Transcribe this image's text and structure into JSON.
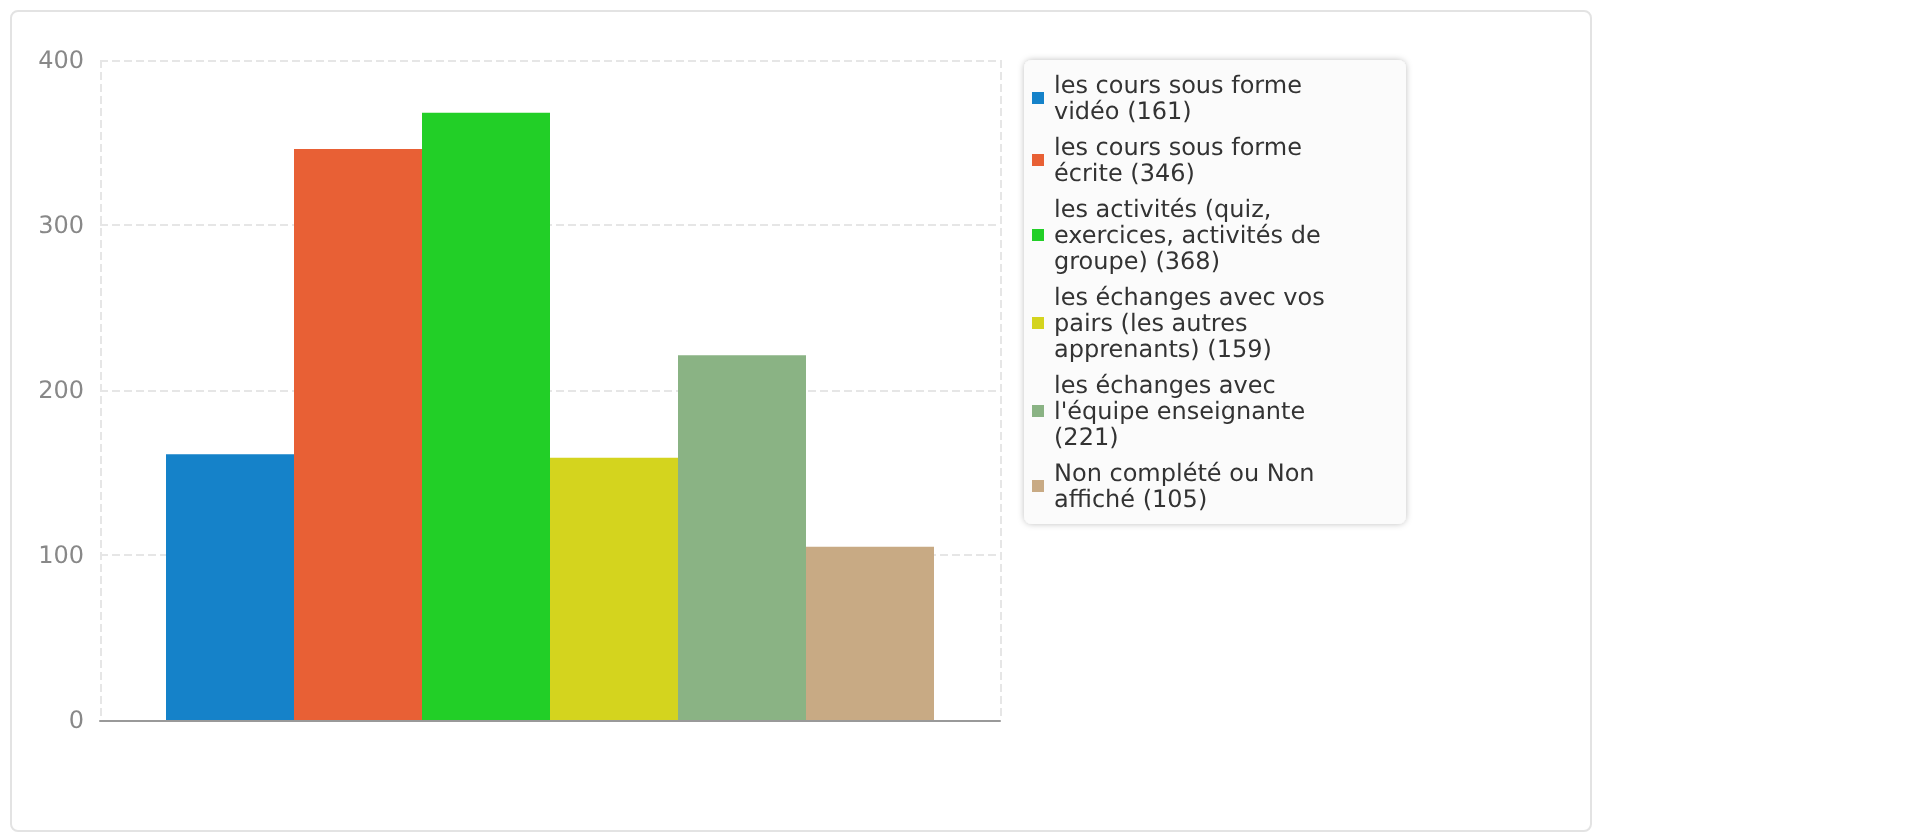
{
  "chart_data": {
    "type": "bar",
    "categories": [
      null
    ],
    "series": [
      {
        "name": "les cours sous forme vidéo (161)",
        "color": "#1582c9",
        "values": [
          161
        ]
      },
      {
        "name": "les cours sous forme écrite (346)",
        "color": "#e86035",
        "values": [
          346
        ]
      },
      {
        "name": "les activités (quiz, exercices, activités de groupe) (368)",
        "color": "#22cf27",
        "values": [
          368
        ]
      },
      {
        "name": "les échanges avec vos pairs (les autres apprenants) (159)",
        "color": "#d4d41e",
        "values": [
          159
        ]
      },
      {
        "name": "les échanges avec l'équipe enseignante (221)",
        "color": "#8ab384",
        "values": [
          221
        ]
      },
      {
        "name": "Non complété ou Non affiché (105)",
        "color": "#c8aa84",
        "values": [
          105
        ]
      }
    ],
    "ylim": [
      0,
      400
    ],
    "yticks": [
      0,
      100,
      200,
      300,
      400
    ],
    "grid": true,
    "legend": "right"
  }
}
